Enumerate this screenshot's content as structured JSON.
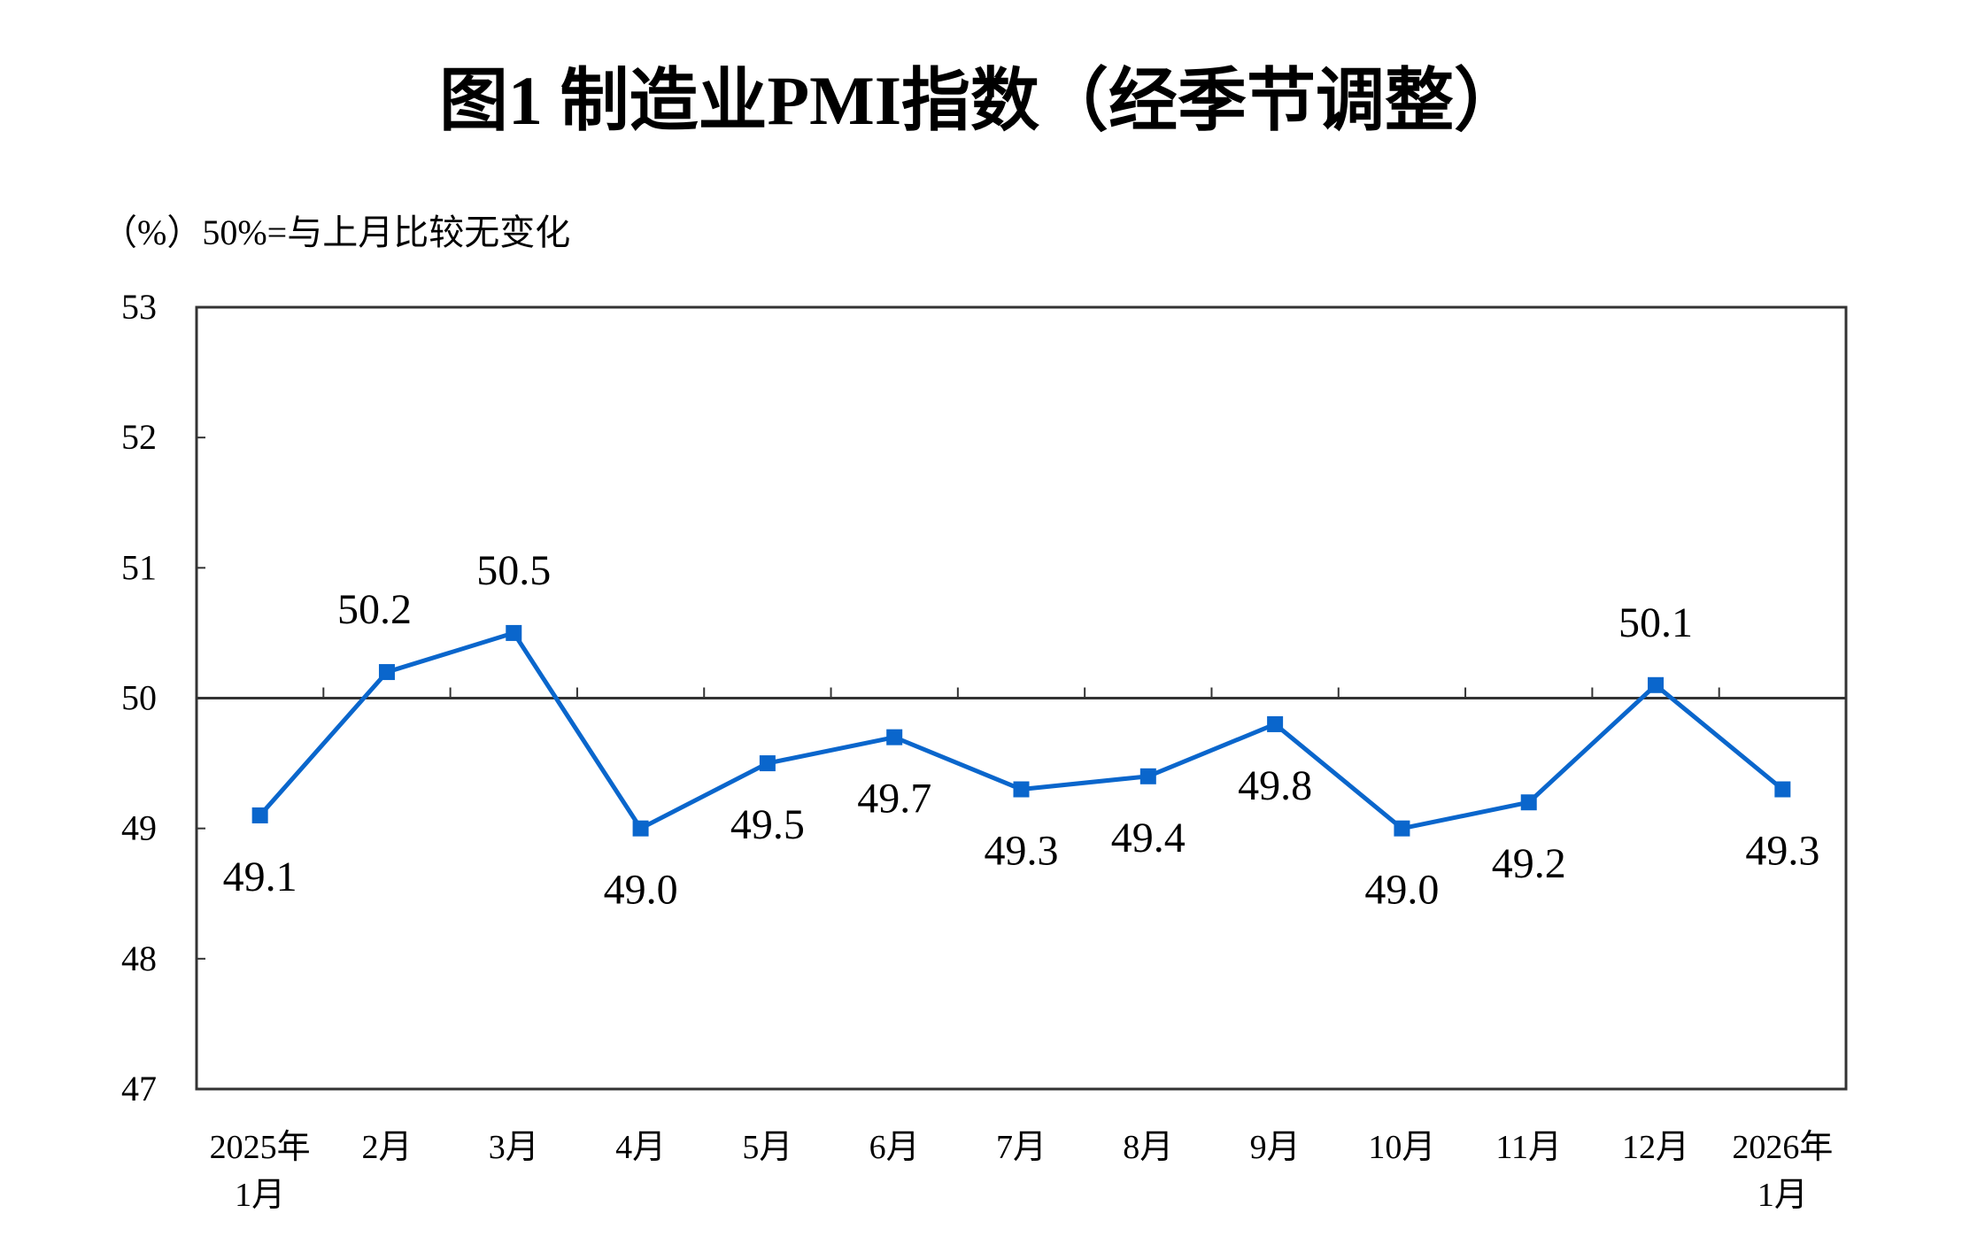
{
  "chart_data": {
    "type": "line",
    "title": "图1  制造业PMI指数（经季节调整）",
    "ylabel": "（%）50%=与上月比较无变化",
    "xlabel": "",
    "categories": [
      [
        "2025年",
        "1月"
      ],
      [
        "2月"
      ],
      [
        "3月"
      ],
      [
        "4月"
      ],
      [
        "5月"
      ],
      [
        "6月"
      ],
      [
        "7月"
      ],
      [
        "8月"
      ],
      [
        "9月"
      ],
      [
        "10月"
      ],
      [
        "11月"
      ],
      [
        "12月"
      ],
      [
        "2026年",
        "1月"
      ]
    ],
    "values": [
      49.1,
      50.2,
      50.5,
      49.0,
      49.5,
      49.7,
      49.3,
      49.4,
      49.8,
      49.0,
      49.2,
      50.1,
      49.3
    ],
    "value_labels": [
      "49.1",
      "50.2",
      "50.5",
      "49.0",
      "49.5",
      "49.7",
      "49.3",
      "49.4",
      "49.8",
      "49.0",
      "49.2",
      "50.1",
      "49.3"
    ],
    "ylim": [
      47,
      53
    ],
    "yticks": [
      47,
      48,
      49,
      50,
      51,
      52,
      53
    ],
    "reference_line": 50,
    "grid": false,
    "marker": "square",
    "series_color": "#0A66CC"
  }
}
